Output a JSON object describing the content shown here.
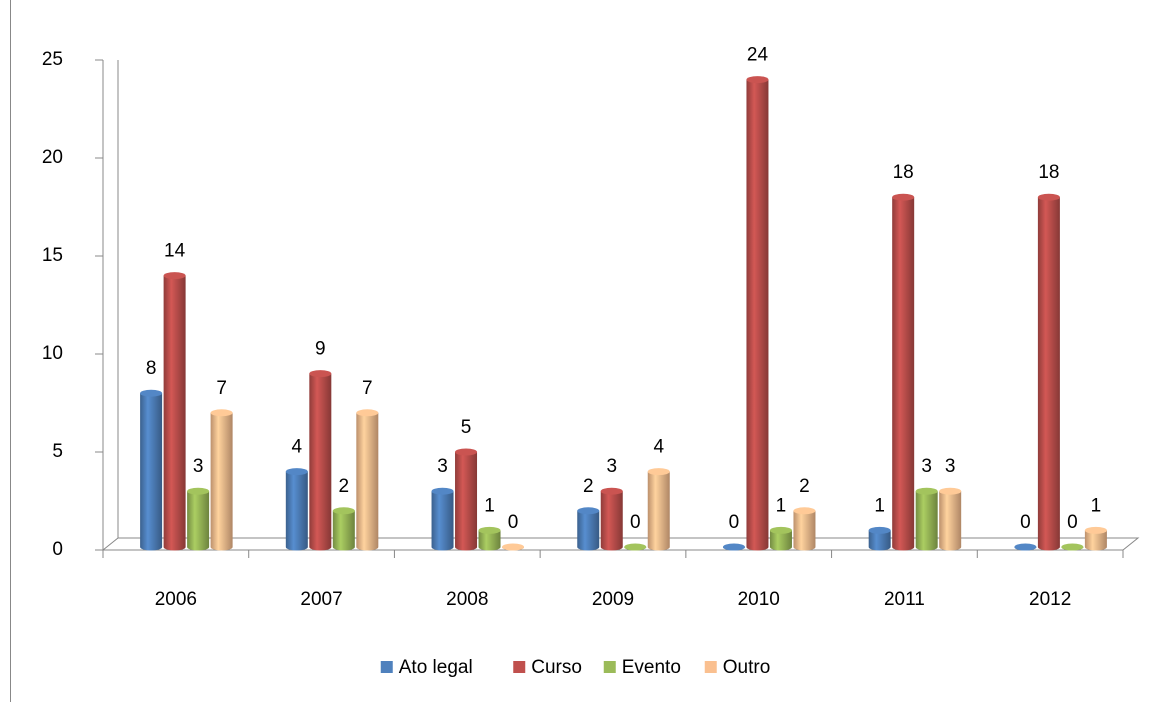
{
  "chart_data": {
    "type": "bar",
    "categories": [
      "2006",
      "2007",
      "2008",
      "2009",
      "2010",
      "2011",
      "2012"
    ],
    "series": [
      {
        "name": "Ato legal",
        "color": "#4f81bd",
        "values": [
          8,
          4,
          3,
          2,
          0,
          1,
          0
        ]
      },
      {
        "name": "Curso",
        "color": "#c0504d",
        "values": [
          14,
          9,
          5,
          3,
          24,
          18,
          18
        ]
      },
      {
        "name": "Evento",
        "color": "#9bbb59",
        "values": [
          3,
          2,
          1,
          0,
          1,
          3,
          0
        ]
      },
      {
        "name": "Outro",
        "color": "#fac090",
        "values": [
          7,
          7,
          0,
          4,
          2,
          3,
          1
        ]
      }
    ],
    "ylim": [
      0,
      25
    ],
    "yticks": [
      0,
      5,
      10,
      15,
      20,
      25
    ],
    "grid": false
  }
}
